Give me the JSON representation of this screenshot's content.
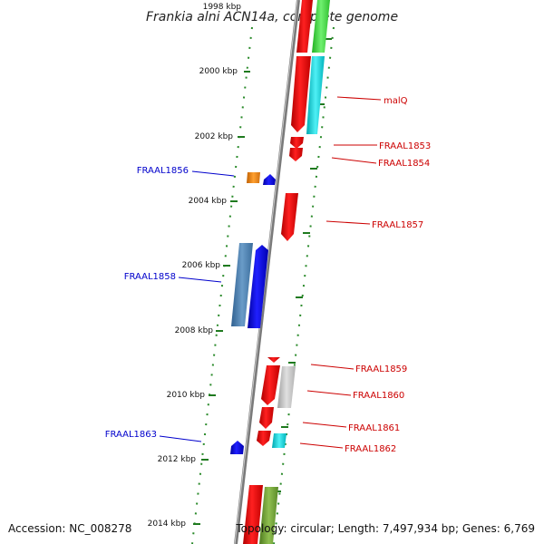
{
  "title": "Frankia alni ACN14a, complete genome",
  "footer": {
    "accession": "Accession: NC_008278",
    "topology": "Topology: circular; Length: 7,497,934 bp; Genes: 6,769"
  },
  "ticks": [
    {
      "label": "1998 kbp"
    },
    {
      "label": "2000 kbp"
    },
    {
      "label": "2002 kbp"
    },
    {
      "label": "2004 kbp"
    },
    {
      "label": "2006 kbp"
    },
    {
      "label": "2008 kbp"
    },
    {
      "label": "2010 kbp"
    },
    {
      "label": "2012 kbp"
    },
    {
      "label": "2014 kbp"
    }
  ],
  "gene_labels": {
    "malQ": "malQ",
    "FRAAL1853": "FRAAL1853",
    "FRAAL1854": "FRAAL1854",
    "FRAAL1856": "FRAAL1856",
    "FRAAL1857": "FRAAL1857",
    "FRAAL1858": "FRAAL1858",
    "FRAAL1859": "FRAAL1859",
    "FRAAL1860": "FRAAL1860",
    "FRAAL1861": "FRAAL1861",
    "FRAAL1862": "FRAAL1862",
    "FRAAL1863": "FRAAL1863"
  },
  "colors": {
    "forward_gene": "#ff0000",
    "reverse_gene": "#0000ff",
    "backbone": "#888888",
    "tick_dots": "#2a8a2a",
    "label_red": "#cc0000",
    "label_blue": "#0000cc"
  }
}
